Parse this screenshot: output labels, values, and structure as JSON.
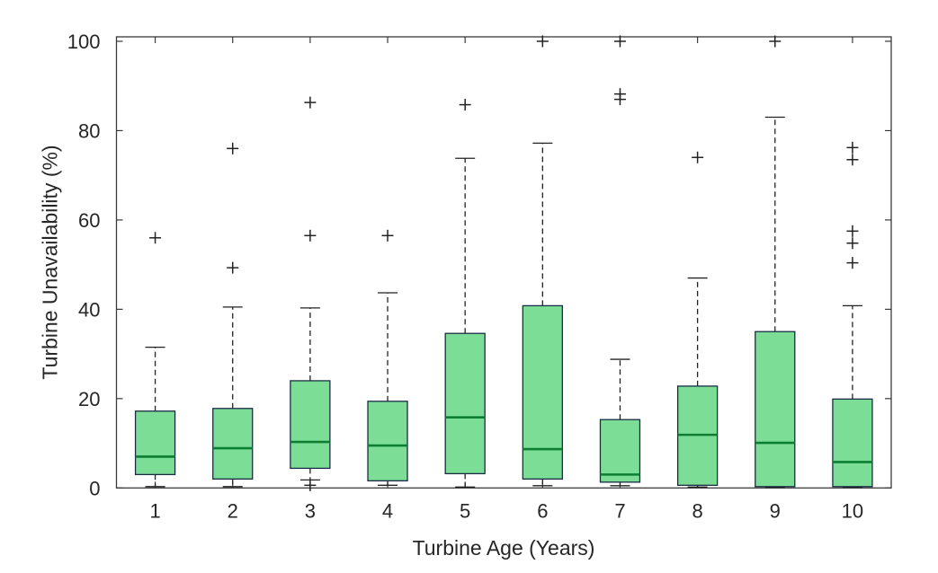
{
  "chart_data": {
    "type": "boxplot",
    "title": "",
    "xlabel": "Turbine Age (Years)",
    "ylabel": "Turbine Unavailability (%)",
    "categories": [
      "1",
      "2",
      "3",
      "4",
      "5",
      "6",
      "7",
      "8",
      "9",
      "10"
    ],
    "y_ticks": [
      0,
      20,
      40,
      60,
      80,
      100
    ],
    "ylim": [
      0,
      101
    ],
    "grid": false,
    "legend": "none",
    "boxes": [
      {
        "category": "1",
        "whisker_low": 0.3,
        "q1": 3.0,
        "median": 7.0,
        "q3": 17.2,
        "whisker_high": 31.5,
        "outliers": [
          56
        ]
      },
      {
        "category": "2",
        "whisker_low": 0.3,
        "q1": 2.0,
        "median": 8.9,
        "q3": 17.8,
        "whisker_high": 40.5,
        "outliers": [
          49.3,
          76
        ]
      },
      {
        "category": "3",
        "whisker_low": 1.8,
        "q1": 4.4,
        "median": 10.3,
        "q3": 24.0,
        "whisker_high": 40.3,
        "outliers": [
          0.6,
          56.5,
          86.3
        ]
      },
      {
        "category": "4",
        "whisker_low": 0.6,
        "q1": 1.6,
        "median": 9.5,
        "q3": 19.4,
        "whisker_high": 43.7,
        "outliers": [
          56.5
        ]
      },
      {
        "category": "5",
        "whisker_low": 0.2,
        "q1": 3.2,
        "median": 15.8,
        "q3": 34.6,
        "whisker_high": 73.8,
        "outliers": [
          85.8
        ]
      },
      {
        "category": "6",
        "whisker_low": 0.5,
        "q1": 2.0,
        "median": 8.7,
        "q3": 40.8,
        "whisker_high": 77.2,
        "outliers": [
          100
        ]
      },
      {
        "category": "7",
        "whisker_low": 0.5,
        "q1": 1.3,
        "median": 3.0,
        "q3": 15.3,
        "whisker_high": 28.8,
        "outliers": [
          87,
          88.2,
          100
        ]
      },
      {
        "category": "8",
        "whisker_low": 0.2,
        "q1": 0.6,
        "median": 11.9,
        "q3": 22.8,
        "whisker_high": 47.0,
        "outliers": [
          74
        ]
      },
      {
        "category": "9",
        "whisker_low": 0.1,
        "q1": 0.3,
        "median": 10.1,
        "q3": 35.0,
        "whisker_high": 83.0,
        "outliers": [
          100
        ]
      },
      {
        "category": "10",
        "whisker_low": 0.1,
        "q1": 0.3,
        "median": 5.8,
        "q3": 19.9,
        "whisker_high": 40.8,
        "outliers": [
          50.4,
          54.8,
          57.5,
          73.5,
          76.2
        ]
      }
    ],
    "colors": {
      "box_fill": "#7CDE96",
      "box_edge": "#1A2B45",
      "median": "#0D7D33",
      "whisker": "#222222",
      "outlier": "#222222",
      "axis": "#3A3A3A",
      "tick_label": "#262626"
    }
  }
}
